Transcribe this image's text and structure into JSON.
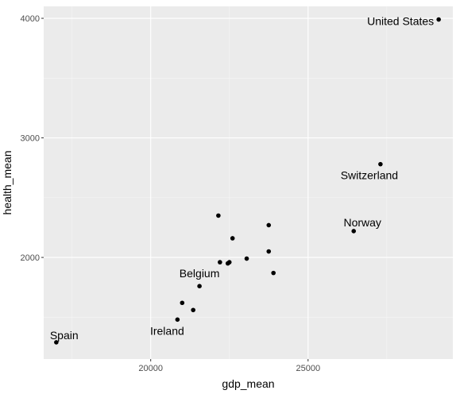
{
  "chart_data": {
    "type": "scatter",
    "xlabel": "gdp_mean",
    "ylabel": "health_mean",
    "xlim": [
      16600,
      29600
    ],
    "ylim": [
      1150,
      4100
    ],
    "x_ticks": [
      20000,
      25000
    ],
    "y_ticks": [
      2000,
      3000,
      4000
    ],
    "grid": true,
    "colors": {
      "panel": "#ebebeb",
      "grid_major": "#ffffff",
      "point": "#000000"
    },
    "points": [
      {
        "x": 29150,
        "y": 3990,
        "label": "United States"
      },
      {
        "x": 27300,
        "y": 2780,
        "label": "Switzerland"
      },
      {
        "x": 26450,
        "y": 2220,
        "label": "Norway"
      },
      {
        "x": 22150,
        "y": 2350,
        "label": ""
      },
      {
        "x": 23750,
        "y": 2270,
        "label": ""
      },
      {
        "x": 22600,
        "y": 2160,
        "label": ""
      },
      {
        "x": 23750,
        "y": 2050,
        "label": ""
      },
      {
        "x": 23050,
        "y": 1990,
        "label": ""
      },
      {
        "x": 22200,
        "y": 1960,
        "label": ""
      },
      {
        "x": 22450,
        "y": 1950,
        "label": ""
      },
      {
        "x": 22500,
        "y": 1960,
        "label": ""
      },
      {
        "x": 23900,
        "y": 1870,
        "label": ""
      },
      {
        "x": 21550,
        "y": 1760,
        "label": "Belgium"
      },
      {
        "x": 21000,
        "y": 1620,
        "label": ""
      },
      {
        "x": 21350,
        "y": 1560,
        "label": ""
      },
      {
        "x": 20850,
        "y": 1480,
        "label": "Ireland"
      },
      {
        "x": 17000,
        "y": 1290,
        "label": "Spain"
      }
    ]
  }
}
